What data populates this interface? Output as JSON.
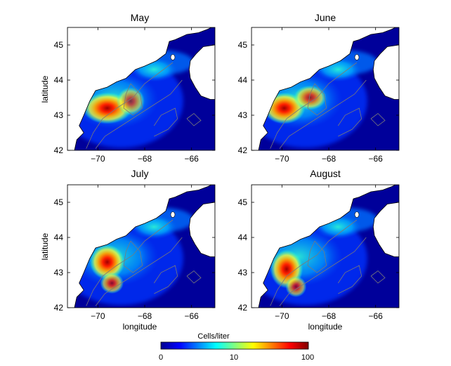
{
  "figure": {
    "ylabel": "latitude",
    "xlabel": "longitude"
  },
  "chart_data": [
    {
      "type": "heatmap",
      "title": "May",
      "xlim": [
        -71.3,
        -65.0
      ],
      "ylim": [
        42,
        45.5
      ],
      "xticks": [
        -70,
        -68,
        -66
      ],
      "yticks": [
        42,
        43,
        44,
        45
      ],
      "ylabel": "latitude",
      "xlabel": "",
      "hotspots": [
        {
          "lon": -69.6,
          "lat": 43.2,
          "level": 1.0,
          "rx": 1.05,
          "ry": 0.45
        },
        {
          "lon": -68.6,
          "lat": 43.4,
          "level": 0.7,
          "rx": 0.6,
          "ry": 0.4
        }
      ]
    },
    {
      "type": "heatmap",
      "title": "June",
      "xlim": [
        -71.3,
        -65.0
      ],
      "ylim": [
        42,
        45.5
      ],
      "xticks": [
        -70,
        -68,
        -66
      ],
      "yticks": [
        42,
        43,
        44,
        45
      ],
      "ylabel": "",
      "xlabel": "",
      "hotspots": [
        {
          "lon": -69.9,
          "lat": 43.2,
          "level": 1.0,
          "rx": 0.9,
          "ry": 0.45
        },
        {
          "lon": -68.8,
          "lat": 43.5,
          "level": 0.8,
          "rx": 0.7,
          "ry": 0.35
        }
      ]
    },
    {
      "type": "heatmap",
      "title": "July",
      "xlim": [
        -71.3,
        -65.0
      ],
      "ylim": [
        42,
        45.5
      ],
      "xticks": [
        -70,
        -68,
        -66
      ],
      "yticks": [
        42,
        43,
        44,
        45
      ],
      "ylabel": "latitude",
      "xlabel": "longitude",
      "hotspots": [
        {
          "lon": -69.6,
          "lat": 43.3,
          "level": 1.0,
          "rx": 0.75,
          "ry": 0.5
        },
        {
          "lon": -69.4,
          "lat": 42.7,
          "level": 0.8,
          "rx": 0.5,
          "ry": 0.3
        }
      ]
    },
    {
      "type": "heatmap",
      "title": "August",
      "xlim": [
        -71.3,
        -65.0
      ],
      "ylim": [
        42,
        45.5
      ],
      "xticks": [
        -70,
        -68,
        -66
      ],
      "yticks": [
        42,
        43,
        44,
        45
      ],
      "ylabel": "",
      "xlabel": "longitude",
      "hotspots": [
        {
          "lon": -69.8,
          "lat": 43.1,
          "level": 1.0,
          "rx": 0.7,
          "ry": 0.55
        },
        {
          "lon": -69.4,
          "lat": 42.6,
          "level": 0.75,
          "rx": 0.45,
          "ry": 0.3
        }
      ]
    }
  ],
  "colorbar": {
    "label": "Cells/liter",
    "ticks": [
      "0",
      "10",
      "100"
    ],
    "scale": "log",
    "colors": [
      "#00008f",
      "#0000ff",
      "#0080ff",
      "#00ffff",
      "#80ff80",
      "#ffff00",
      "#ff8000",
      "#ff0000",
      "#800000"
    ]
  }
}
